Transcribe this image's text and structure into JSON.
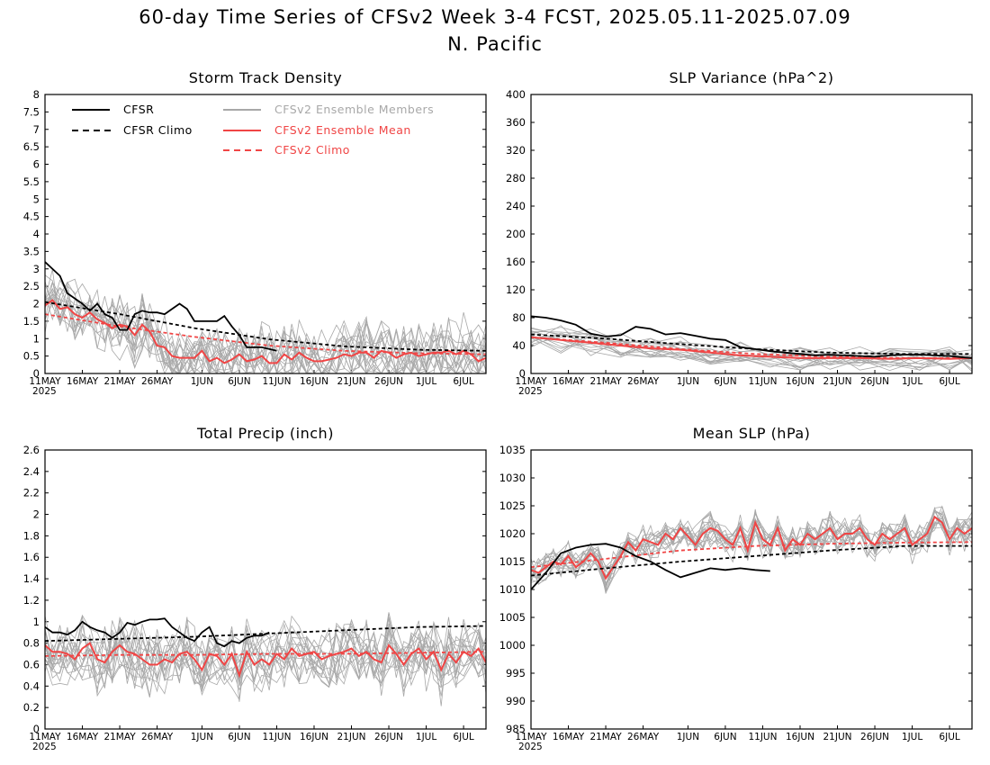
{
  "header": {
    "title": "60-day Time Series of CFSv2 Week 3-4 FCST, 2025.05.11-2025.07.09",
    "region": "N. Pacific"
  },
  "legend": {
    "cfsr": "CFSR",
    "cfsr_climo": "CFSR Climo",
    "members": "CFSv2 Ensemble Members",
    "ens_mean": "CFSv2 Ensemble Mean",
    "cfsv2_climo": "CFSv2 Climo"
  },
  "colors": {
    "cfsr": "#000000",
    "members": "#a8a8a8",
    "ens_mean": "#f04545",
    "cfsv2_climo": "#f04545"
  },
  "x_ticks": [
    "11MAY",
    "16MAY",
    "21MAY",
    "26MAY",
    "1JUN",
    "6JUN",
    "11JUN",
    "16JUN",
    "21JUN",
    "26JUN",
    "1JUL",
    "6JUL"
  ],
  "x_tick_days": [
    0,
    5,
    10,
    15,
    21,
    26,
    31,
    36,
    41,
    46,
    51,
    56
  ],
  "x_year": "2025",
  "chart_data": [
    {
      "type": "line",
      "title": "Storm Track Density",
      "xlim": [
        0,
        59
      ],
      "ylim": [
        0,
        8
      ],
      "y_ticks": [
        "0",
        "0.5",
        "1",
        "1.5",
        "2",
        "2.5",
        "3",
        "3.5",
        "4",
        "4.5",
        "5",
        "5.5",
        "6",
        "6.5",
        "7",
        "7.5",
        "8"
      ],
      "series": [
        {
          "name": "CFSR",
          "style": "solid-black",
          "x": [
            0,
            2,
            3,
            5,
            6,
            7,
            8,
            9,
            10,
            11,
            12,
            13,
            14,
            15,
            16,
            17,
            18,
            19,
            20,
            21,
            22,
            23,
            24,
            25,
            26,
            27,
            28,
            29,
            31
          ],
          "values": [
            3.2,
            2.8,
            2.3,
            2.0,
            1.8,
            2.0,
            1.7,
            1.6,
            1.25,
            1.25,
            1.7,
            1.8,
            1.75,
            1.75,
            1.7,
            1.85,
            2.0,
            1.85,
            1.5,
            1.5,
            1.5,
            1.5,
            1.65,
            1.35,
            1.1,
            0.75,
            0.75,
            0.75,
            0.65
          ]
        },
        {
          "name": "CFSR Climo",
          "style": "dashed-black",
          "x": [
            0,
            10,
            20,
            30,
            40,
            50,
            59
          ],
          "values": [
            2.05,
            1.7,
            1.3,
            0.98,
            0.78,
            0.68,
            0.65
          ]
        },
        {
          "name": "CFSv2 Ensemble Mean",
          "style": "solid-red",
          "x": [
            0,
            1,
            2,
            3,
            4,
            5,
            6,
            7,
            8,
            9,
            10,
            11,
            12,
            13,
            14,
            15,
            16,
            17,
            18,
            19,
            20,
            21,
            22,
            23,
            24,
            25,
            26,
            27,
            28,
            29,
            30,
            31,
            32,
            33,
            34,
            35,
            36,
            37,
            38,
            39,
            40,
            41,
            42,
            43,
            44,
            45,
            46,
            47,
            48,
            49,
            50,
            51,
            52,
            53,
            54,
            55,
            56,
            57,
            58,
            59
          ],
          "values": [
            1.95,
            2.1,
            1.85,
            1.9,
            1.7,
            1.6,
            1.75,
            1.55,
            1.45,
            1.3,
            1.4,
            1.35,
            1.1,
            1.4,
            1.2,
            0.8,
            0.75,
            0.5,
            0.45,
            0.45,
            0.45,
            0.65,
            0.35,
            0.45,
            0.3,
            0.4,
            0.55,
            0.35,
            0.4,
            0.5,
            0.3,
            0.3,
            0.55,
            0.4,
            0.6,
            0.45,
            0.35,
            0.35,
            0.4,
            0.45,
            0.55,
            0.5,
            0.6,
            0.6,
            0.45,
            0.65,
            0.6,
            0.45,
            0.55,
            0.6,
            0.5,
            0.55,
            0.6,
            0.6,
            0.65,
            0.55,
            0.65,
            0.55,
            0.35,
            0.45
          ]
        },
        {
          "name": "CFSv2 Climo",
          "style": "dashed-red",
          "x": [
            0,
            10,
            20,
            30,
            40,
            50,
            59
          ],
          "values": [
            1.7,
            1.35,
            1.05,
            0.8,
            0.65,
            0.58,
            0.55
          ]
        }
      ]
    },
    {
      "type": "line",
      "title": "SLP Variance (hPa^2)",
      "xlim": [
        0,
        59
      ],
      "ylim": [
        0,
        400
      ],
      "y_ticks": [
        "0",
        "40",
        "80",
        "120",
        "160",
        "200",
        "240",
        "280",
        "320",
        "360",
        "400"
      ],
      "series": [
        {
          "name": "CFSR",
          "style": "solid-black",
          "x": [
            0,
            2,
            4,
            6,
            8,
            10,
            12,
            14,
            16,
            18,
            20,
            22,
            24,
            26,
            28,
            30,
            32,
            34,
            36,
            38,
            40,
            42,
            44,
            46,
            48,
            50,
            52,
            54,
            56,
            58,
            59
          ],
          "values": [
            82,
            80,
            76,
            70,
            57,
            53,
            55,
            67,
            64,
            56,
            58,
            54,
            50,
            48,
            38,
            35,
            32,
            30,
            28,
            26,
            27,
            26,
            25,
            24,
            26,
            27,
            27,
            26,
            25,
            23,
            22
          ]
        },
        {
          "name": "CFSR Climo",
          "style": "dashed-black",
          "x": [
            0,
            10,
            20,
            30,
            40,
            50,
            59
          ],
          "values": [
            56,
            50,
            42,
            35,
            30,
            28,
            28
          ]
        },
        {
          "name": "CFSv2 Ensemble Mean",
          "style": "solid-red",
          "x": [
            0,
            4,
            8,
            12,
            16,
            20,
            24,
            28,
            32,
            36,
            40,
            44,
            48,
            52,
            56,
            59
          ],
          "values": [
            52,
            48,
            44,
            40,
            36,
            34,
            30,
            26,
            24,
            22,
            22,
            22,
            21,
            22,
            21,
            22
          ]
        },
        {
          "name": "CFSv2 Climo",
          "style": "dashed-red",
          "x": [
            0,
            10,
            20,
            30,
            40,
            50,
            59
          ],
          "values": [
            52,
            44,
            35,
            28,
            24,
            22,
            22
          ]
        }
      ]
    },
    {
      "type": "line",
      "title": "Total Precip (inch)",
      "xlim": [
        0,
        59
      ],
      "ylim": [
        0,
        2.6
      ],
      "y_ticks": [
        "0",
        "0.2",
        "0.4",
        "0.6",
        "0.8",
        "1",
        "1.2",
        "1.4",
        "1.6",
        "1.8",
        "2",
        "2.2",
        "2.4",
        "2.6"
      ],
      "series": [
        {
          "name": "CFSR",
          "style": "solid-black",
          "x": [
            0,
            1,
            2,
            3,
            4,
            5,
            6,
            7,
            8,
            9,
            10,
            11,
            12,
            13,
            14,
            15,
            16,
            17,
            18,
            19,
            20,
            21,
            22,
            23,
            24,
            25,
            26,
            27,
            28,
            29,
            30
          ],
          "values": [
            0.95,
            0.9,
            0.9,
            0.88,
            0.92,
            1.0,
            0.95,
            0.92,
            0.9,
            0.85,
            0.9,
            0.99,
            0.97,
            1.0,
            1.02,
            1.02,
            1.03,
            0.95,
            0.9,
            0.85,
            0.82,
            0.9,
            0.95,
            0.8,
            0.77,
            0.82,
            0.8,
            0.85,
            0.87,
            0.87,
            0.9
          ]
        },
        {
          "name": "CFSR Climo",
          "style": "dashed-black",
          "x": [
            0,
            10,
            20,
            30,
            40,
            50,
            59
          ],
          "values": [
            0.82,
            0.84,
            0.86,
            0.89,
            0.92,
            0.95,
            0.96
          ]
        },
        {
          "name": "CFSv2 Ensemble Mean",
          "style": "solid-red",
          "x": [
            0,
            1,
            2,
            3,
            4,
            5,
            6,
            7,
            8,
            9,
            10,
            11,
            12,
            13,
            14,
            15,
            16,
            17,
            18,
            19,
            20,
            21,
            22,
            23,
            24,
            25,
            26,
            27,
            28,
            29,
            30,
            31,
            32,
            33,
            34,
            35,
            36,
            37,
            38,
            39,
            40,
            41,
            42,
            43,
            44,
            45,
            46,
            47,
            48,
            49,
            50,
            51,
            52,
            53,
            54,
            55,
            56,
            57,
            58,
            59
          ],
          "values": [
            0.78,
            0.72,
            0.72,
            0.7,
            0.65,
            0.75,
            0.8,
            0.65,
            0.62,
            0.72,
            0.78,
            0.72,
            0.7,
            0.65,
            0.6,
            0.6,
            0.65,
            0.62,
            0.7,
            0.72,
            0.65,
            0.55,
            0.7,
            0.68,
            0.6,
            0.7,
            0.5,
            0.72,
            0.6,
            0.65,
            0.6,
            0.7,
            0.65,
            0.75,
            0.68,
            0.7,
            0.72,
            0.65,
            0.68,
            0.7,
            0.72,
            0.75,
            0.68,
            0.72,
            0.65,
            0.62,
            0.78,
            0.7,
            0.6,
            0.7,
            0.75,
            0.65,
            0.72,
            0.55,
            0.7,
            0.62,
            0.72,
            0.68,
            0.75,
            0.62
          ]
        },
        {
          "name": "CFSv2 Climo",
          "style": "dashed-red",
          "x": [
            0,
            10,
            20,
            30,
            40,
            50,
            59
          ],
          "values": [
            0.68,
            0.69,
            0.69,
            0.7,
            0.7,
            0.71,
            0.72
          ]
        }
      ]
    },
    {
      "type": "line",
      "title": "Mean SLP (hPa)",
      "xlim": [
        0,
        59
      ],
      "ylim": [
        985,
        1035
      ],
      "y_ticks": [
        "985",
        "990",
        "995",
        "1000",
        "1005",
        "1010",
        "1015",
        "1020",
        "1025",
        "1030",
        "1035"
      ],
      "series": [
        {
          "name": "CFSR",
          "style": "solid-black",
          "x": [
            0,
            2,
            4,
            6,
            8,
            10,
            12,
            14,
            16,
            18,
            20,
            22,
            24,
            26,
            28,
            30,
            32
          ],
          "values": [
            1010,
            1013,
            1016.5,
            1017.5,
            1018,
            1018.2,
            1017.5,
            1016,
            1015,
            1013.5,
            1012.2,
            1013,
            1013.8,
            1013.5,
            1013.8,
            1013.5,
            1013.3
          ]
        },
        {
          "name": "CFSR Climo",
          "style": "dashed-black",
          "x": [
            0,
            10,
            20,
            30,
            40,
            50,
            59
          ],
          "values": [
            1012.5,
            1013.8,
            1015,
            1016,
            1017,
            1017.8,
            1017.8
          ]
        },
        {
          "name": "CFSv2 Ensemble Mean",
          "style": "solid-red",
          "x": [
            0,
            1,
            2,
            3,
            4,
            5,
            6,
            7,
            8,
            9,
            10,
            11,
            12,
            13,
            14,
            15,
            16,
            17,
            18,
            19,
            20,
            21,
            22,
            23,
            24,
            25,
            26,
            27,
            28,
            29,
            30,
            31,
            32,
            33,
            34,
            35,
            36,
            37,
            38,
            39,
            40,
            41,
            42,
            43,
            44,
            45,
            46,
            47,
            48,
            49,
            50,
            51,
            52,
            53,
            54,
            55,
            56,
            57,
            58,
            59
          ],
          "values": [
            1013.5,
            1013,
            1014,
            1015,
            1014.5,
            1016,
            1014,
            1015,
            1016.5,
            1015,
            1012,
            1014,
            1016,
            1018.5,
            1017,
            1019,
            1018.5,
            1018,
            1020,
            1019,
            1021,
            1019.5,
            1018,
            1020,
            1021,
            1020.5,
            1019,
            1018,
            1021,
            1017,
            1022,
            1019,
            1018,
            1021,
            1017,
            1019,
            1018,
            1020,
            1019,
            1020,
            1021,
            1019,
            1020,
            1020,
            1021,
            1019,
            1018,
            1020,
            1019,
            1020,
            1021,
            1018,
            1019,
            1020,
            1023,
            1022,
            1019,
            1021,
            1020,
            1021
          ]
        },
        {
          "name": "CFSv2 Climo",
          "style": "dashed-red",
          "x": [
            0,
            10,
            20,
            30,
            40,
            50,
            59
          ],
          "values": [
            1014,
            1015.5,
            1017,
            1017.8,
            1018.2,
            1018.4,
            1018.5
          ]
        }
      ]
    }
  ]
}
